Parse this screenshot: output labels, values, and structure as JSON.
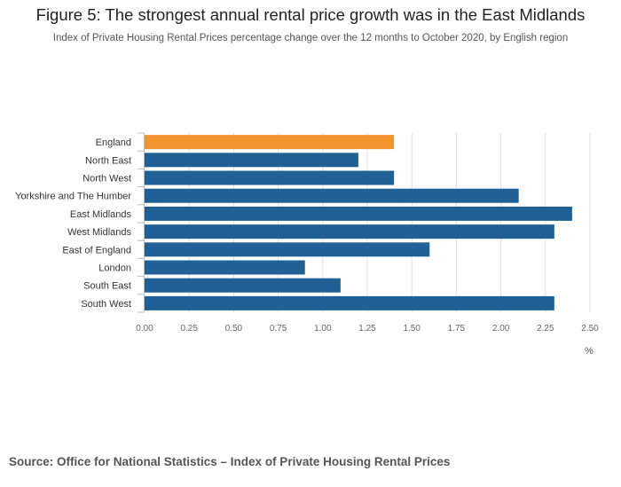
{
  "header": {
    "title": "Figure 5: The strongest annual rental price growth was in the East Midlands",
    "subtitle": "Index of Private Housing Rental Prices percentage change over the 12 months to October 2020, by English region"
  },
  "footer": {
    "source": "Source: Office for National Statistics – Index of Private Housing Rental Prices"
  },
  "chart_data": {
    "type": "bar",
    "orientation": "horizontal",
    "categories": [
      "England",
      "North East",
      "North West",
      "Yorkshire and The Humber",
      "East Midlands",
      "West Midlands",
      "East of England",
      "London",
      "South East",
      "South West"
    ],
    "values": [
      1.4,
      1.2,
      1.4,
      2.1,
      2.4,
      2.3,
      1.6,
      0.9,
      1.1,
      2.3
    ],
    "highlight_category": "England",
    "colors": {
      "default": "#206095",
      "highlight": "#F39431",
      "grid": "#E0E0E0",
      "axis": "#BBBBBB"
    },
    "xlim": [
      0,
      2.5
    ],
    "xticks": [
      "0.00",
      "0.25",
      "0.50",
      "0.75",
      "1.00",
      "1.25",
      "1.50",
      "1.75",
      "2.00",
      "2.25",
      "2.50"
    ],
    "xlabel": "%",
    "grid": true,
    "legend": "none"
  }
}
